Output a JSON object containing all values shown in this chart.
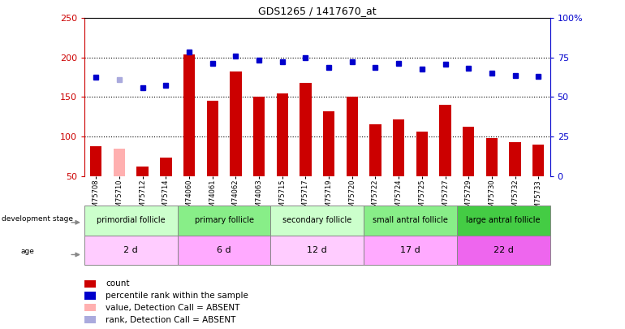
{
  "title": "GDS1265 / 1417670_at",
  "samples": [
    "GSM75708",
    "GSM75710",
    "GSM75712",
    "GSM75714",
    "GSM74060",
    "GSM74061",
    "GSM74062",
    "GSM74063",
    "GSM75715",
    "GSM75717",
    "GSM75719",
    "GSM75720",
    "GSM75722",
    "GSM75724",
    "GSM75725",
    "GSM75727",
    "GSM75729",
    "GSM75730",
    "GSM75732",
    "GSM75733"
  ],
  "count_values": [
    88,
    85,
    62,
    73,
    204,
    145,
    182,
    150,
    155,
    168,
    132,
    150,
    115,
    122,
    106,
    140,
    112,
    98,
    93,
    90
  ],
  "count_absent": [
    false,
    true,
    false,
    false,
    false,
    false,
    false,
    false,
    false,
    false,
    false,
    false,
    false,
    false,
    false,
    false,
    false,
    false,
    false,
    false
  ],
  "rank_values": [
    175,
    172,
    162,
    165,
    207,
    193,
    202,
    197,
    195,
    200,
    188,
    195,
    188,
    193,
    185,
    192,
    187,
    180,
    177,
    176
  ],
  "rank_absent": [
    false,
    true,
    false,
    false,
    false,
    false,
    false,
    false,
    false,
    false,
    false,
    false,
    false,
    false,
    false,
    false,
    false,
    false,
    false,
    false
  ],
  "ylim_left": [
    50,
    250
  ],
  "yticks_left": [
    50,
    100,
    150,
    200,
    250
  ],
  "yticks_right_vals": [
    50,
    100,
    150,
    200,
    250
  ],
  "ytick_labels_right": [
    "0",
    "25",
    "50",
    "75",
    "100%"
  ],
  "color_count": "#cc0000",
  "color_count_absent": "#ffb0b0",
  "color_rank": "#0000cc",
  "color_rank_absent": "#aaaadd",
  "groups": [
    {
      "label": "primordial follicle",
      "start": 0,
      "end": 4,
      "color": "#ccffcc",
      "age": "2 d",
      "age_color": "#ffccff"
    },
    {
      "label": "primary follicle",
      "start": 4,
      "end": 8,
      "color": "#88ee88",
      "age": "6 d",
      "age_color": "#ffaaff"
    },
    {
      "label": "secondary follicle",
      "start": 8,
      "end": 12,
      "color": "#ccffcc",
      "age": "12 d",
      "age_color": "#ffccff"
    },
    {
      "label": "small antral follicle",
      "start": 12,
      "end": 16,
      "color": "#88ee88",
      "age": "17 d",
      "age_color": "#ffaaff"
    },
    {
      "label": "large antral follicle",
      "start": 16,
      "end": 20,
      "color": "#44cc44",
      "age": "22 d",
      "age_color": "#ee66ee"
    }
  ],
  "legend_items": [
    {
      "label": "count",
      "color": "#cc0000"
    },
    {
      "label": "percentile rank within the sample",
      "color": "#0000cc"
    },
    {
      "label": "value, Detection Call = ABSENT",
      "color": "#ffb0b0"
    },
    {
      "label": "rank, Detection Call = ABSENT",
      "color": "#aaaadd"
    }
  ],
  "bar_width": 0.5
}
